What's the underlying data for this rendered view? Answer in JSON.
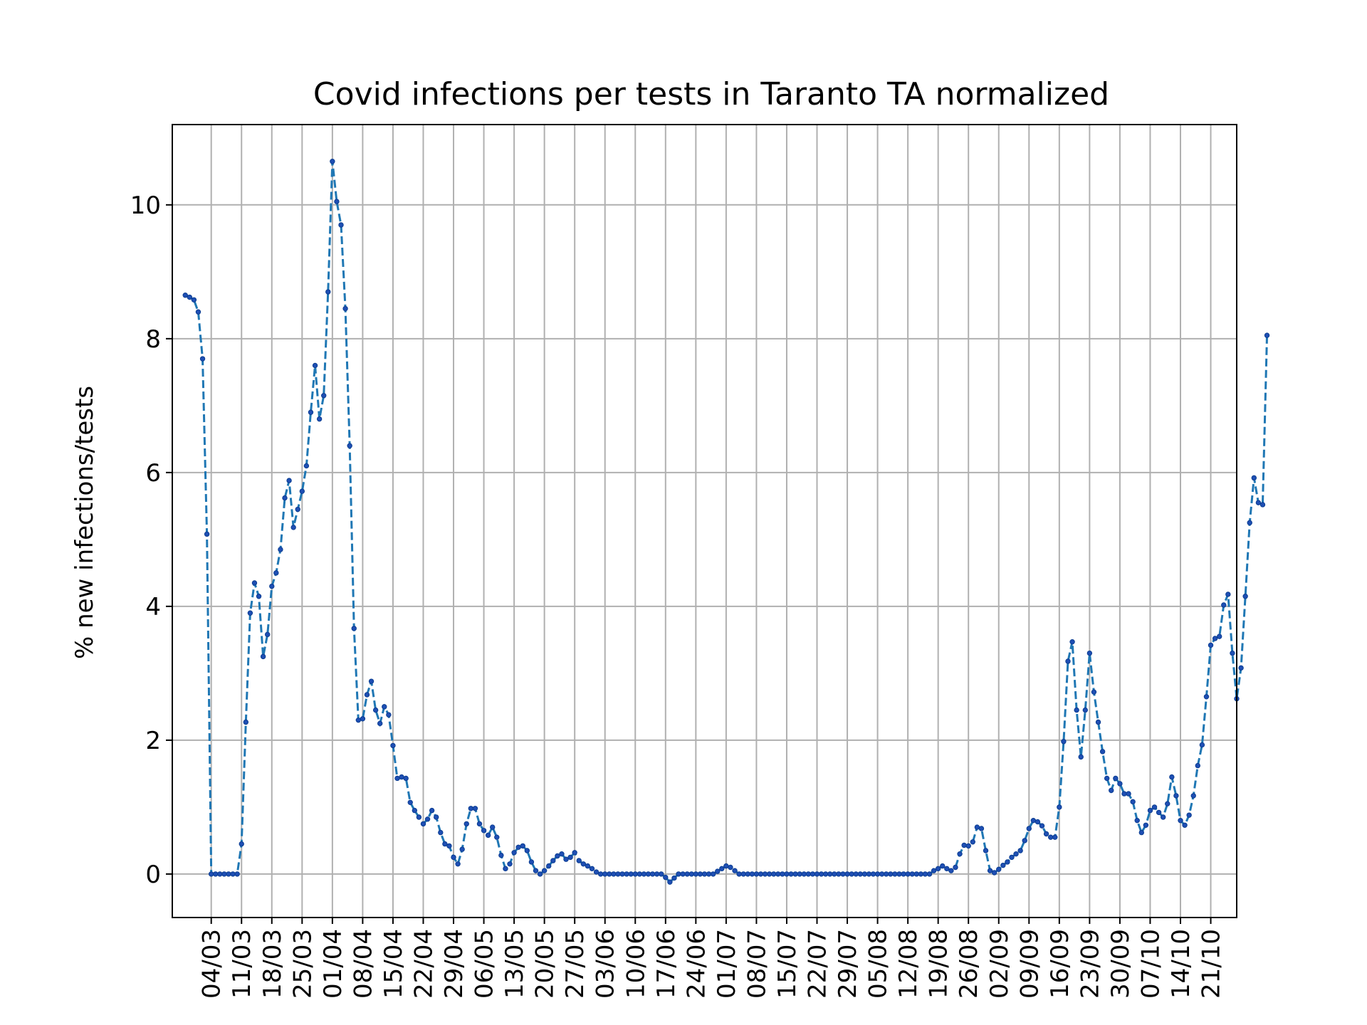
{
  "chart_data": {
    "type": "line",
    "title": "Covid infections per tests in Taranto TA normalized",
    "xlabel": "",
    "ylabel": "% new infections/tests",
    "ylim": [
      -0.65,
      11.2
    ],
    "xlim": [
      "2020-02-24",
      "2020-10-27"
    ],
    "grid": true,
    "colors": {
      "line": "#1f77b4",
      "marker": "#1f4fb4"
    },
    "y_ticks": [
      0,
      2,
      4,
      6,
      8,
      10
    ],
    "x_ticks": [
      {
        "date": "2020-03-04",
        "label": "04/03"
      },
      {
        "date": "2020-03-11",
        "label": "11/03"
      },
      {
        "date": "2020-03-18",
        "label": "18/03"
      },
      {
        "date": "2020-03-25",
        "label": "25/03"
      },
      {
        "date": "2020-04-01",
        "label": "01/04"
      },
      {
        "date": "2020-04-08",
        "label": "08/04"
      },
      {
        "date": "2020-04-15",
        "label": "15/04"
      },
      {
        "date": "2020-04-22",
        "label": "22/04"
      },
      {
        "date": "2020-04-29",
        "label": "29/04"
      },
      {
        "date": "2020-05-06",
        "label": "06/05"
      },
      {
        "date": "2020-05-13",
        "label": "13/05"
      },
      {
        "date": "2020-05-20",
        "label": "20/05"
      },
      {
        "date": "2020-05-27",
        "label": "27/05"
      },
      {
        "date": "2020-06-03",
        "label": "03/06"
      },
      {
        "date": "2020-06-10",
        "label": "10/06"
      },
      {
        "date": "2020-06-17",
        "label": "17/06"
      },
      {
        "date": "2020-06-24",
        "label": "24/06"
      },
      {
        "date": "2020-07-01",
        "label": "01/07"
      },
      {
        "date": "2020-07-08",
        "label": "08/07"
      },
      {
        "date": "2020-07-15",
        "label": "15/07"
      },
      {
        "date": "2020-07-22",
        "label": "22/07"
      },
      {
        "date": "2020-07-29",
        "label": "29/07"
      },
      {
        "date": "2020-08-05",
        "label": "05/08"
      },
      {
        "date": "2020-08-12",
        "label": "12/08"
      },
      {
        "date": "2020-08-19",
        "label": "19/08"
      },
      {
        "date": "2020-08-26",
        "label": "26/08"
      },
      {
        "date": "2020-09-02",
        "label": "02/09"
      },
      {
        "date": "2020-09-09",
        "label": "09/09"
      },
      {
        "date": "2020-09-16",
        "label": "16/09"
      },
      {
        "date": "2020-09-23",
        "label": "23/09"
      },
      {
        "date": "2020-09-30",
        "label": "30/09"
      },
      {
        "date": "2020-10-07",
        "label": "07/10"
      },
      {
        "date": "2020-10-14",
        "label": "14/10"
      },
      {
        "date": "2020-10-21",
        "label": "21/10"
      }
    ],
    "start_date": "2020-02-27",
    "y": [
      8.65,
      8.62,
      8.58,
      8.4,
      7.7,
      5.08,
      0,
      0,
      0,
      0,
      0,
      0,
      0,
      0.45,
      2.27,
      3.9,
      4.35,
      4.15,
      3.25,
      3.58,
      4.3,
      4.5,
      4.85,
      5.62,
      5.88,
      5.18,
      5.45,
      5.72,
      6.1,
      6.9,
      7.6,
      6.8,
      7.15,
      8.7,
      10.65,
      10.05,
      9.7,
      8.45,
      6.4,
      3.67,
      2.3,
      2.32,
      2.68,
      2.88,
      2.45,
      2.25,
      2.5,
      2.38,
      1.92,
      1.43,
      1.45,
      1.43,
      1.07,
      0.95,
      0.85,
      0.75,
      0.82,
      0.95,
      0.85,
      0.62,
      0.45,
      0.42,
      0.25,
      0.15,
      0.37,
      0.75,
      0.98,
      0.98,
      0.75,
      0.65,
      0.58,
      0.7,
      0.55,
      0.28,
      0.08,
      0.15,
      0.32,
      0.4,
      0.42,
      0.35,
      0.18,
      0.05,
      0.0,
      0.05,
      0.12,
      0.2,
      0.27,
      0.3,
      0.22,
      0.25,
      0.32,
      0.2,
      0.15,
      0.12,
      0.08,
      0.03,
      0.0,
      0,
      0,
      0,
      0,
      0,
      0,
      0,
      0,
      0,
      0,
      0,
      0,
      0,
      0,
      -0.05,
      -0.12,
      -0.06,
      0,
      0,
      0,
      0,
      0,
      0,
      0,
      0,
      0,
      0.04,
      0.08,
      0.12,
      0.1,
      0.05,
      0,
      0,
      0,
      0,
      0,
      0,
      0,
      0,
      0,
      0,
      0,
      0,
      0,
      0,
      0,
      0,
      0,
      0,
      0,
      0,
      0,
      0,
      0,
      0,
      0,
      0,
      0,
      0,
      0,
      0,
      0,
      0,
      0,
      0,
      0,
      0,
      0,
      0,
      0,
      0,
      0,
      0,
      0,
      0,
      0,
      0.05,
      0.08,
      0.12,
      0.08,
      0.05,
      0.1,
      0.3,
      0.43,
      0.42,
      0.48,
      0.7,
      0.68,
      0.35,
      0.05,
      0.02,
      0.07,
      0.13,
      0.18,
      0.25,
      0.3,
      0.35,
      0.5,
      0.68,
      0.8,
      0.78,
      0.72,
      0.6,
      0.55,
      0.55,
      1.0,
      1.98,
      3.18,
      3.47,
      2.45,
      1.75,
      2.45,
      3.3,
      2.72,
      2.27,
      1.83,
      1.43,
      1.25,
      1.43,
      1.35,
      1.2,
      1.2,
      1.08,
      0.8,
      0.62,
      0.73,
      0.95,
      1.0,
      0.92,
      0.85,
      1.05,
      1.45,
      1.17,
      0.8,
      0.73,
      0.88,
      1.17,
      1.62,
      1.93,
      2.65,
      3.42,
      3.52,
      3.55,
      4.02,
      4.18,
      3.3,
      2.62,
      3.08,
      4.15,
      5.25,
      5.92,
      5.55,
      5.52,
      8.05
    ]
  }
}
